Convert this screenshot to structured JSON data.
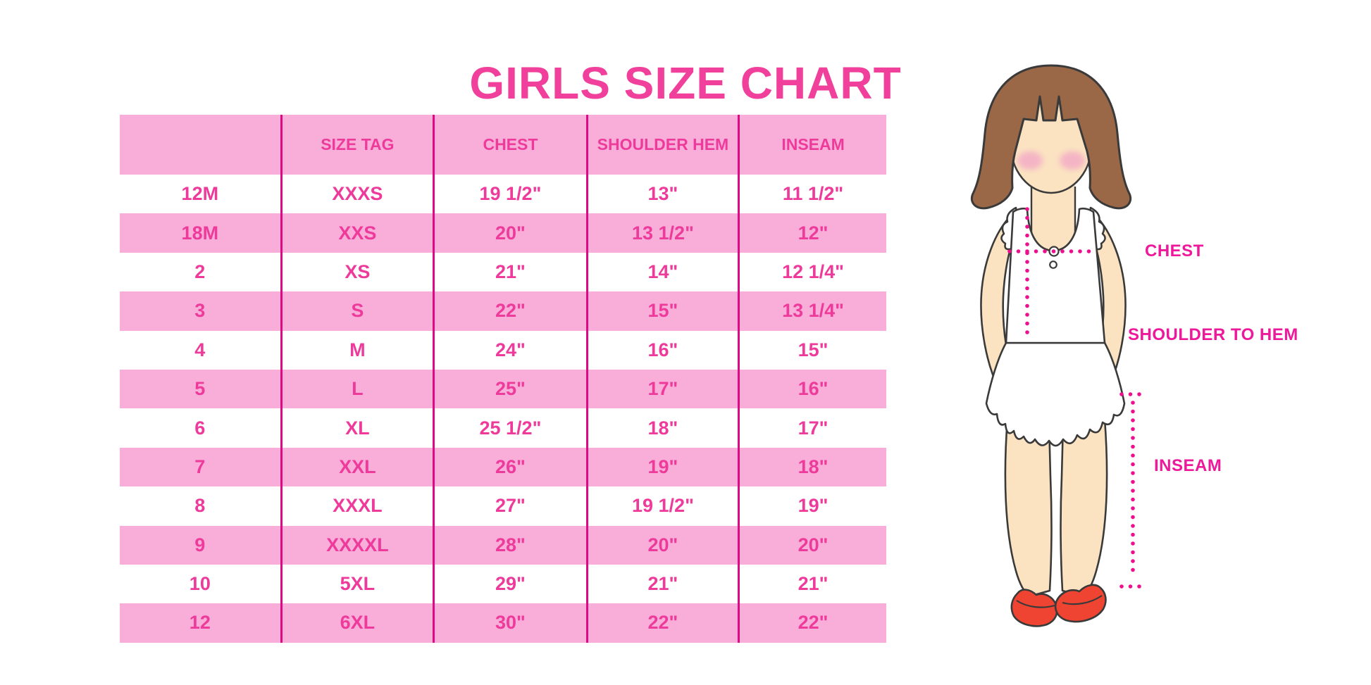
{
  "header": {
    "title": "GIRLS SIZE CHART"
  },
  "colors": {
    "row_pink": "#F9AEDA",
    "table_text_pink": "#EE3B9B",
    "column_divider_magenta": "#DE0984",
    "title_pink": "#F0409B",
    "figure_label_pink": "#EE189A",
    "dotted_line_pink": "#ED108E",
    "skin": "#FBE3C1",
    "hair_brown": "#9A6847",
    "blush_pink": "#F3A9C6",
    "shoe_red": "#EF4431"
  },
  "chart_data": {
    "type": "table",
    "title": "GIRLS SIZE CHART",
    "columns": [
      "",
      "SIZE TAG",
      "CHEST",
      "SHOULDER HEM",
      "INSEAM"
    ],
    "rows": [
      [
        "12M",
        "XXXS",
        "19 1/2\"",
        "13\"",
        "11 1/2\""
      ],
      [
        "18M",
        "XXS",
        "20\"",
        "13 1/2\"",
        "12\""
      ],
      [
        "2",
        "XS",
        "21\"",
        "14\"",
        "12 1/4\""
      ],
      [
        "3",
        "S",
        "22\"",
        "15\"",
        "13 1/4\""
      ],
      [
        "4",
        "M",
        "24\"",
        "16\"",
        "15\""
      ],
      [
        "5",
        "L",
        "25\"",
        "17\"",
        "16\""
      ],
      [
        "6",
        "XL",
        "25 1/2\"",
        "18\"",
        "17\""
      ],
      [
        "7",
        "XXL",
        "26\"",
        "19\"",
        "18\""
      ],
      [
        "8",
        "XXXL",
        "27\"",
        "19 1/2\"",
        "19\""
      ],
      [
        "9",
        "XXXXL",
        "28\"",
        "20\"",
        "20\""
      ],
      [
        "10",
        "5XL",
        "29\"",
        "21\"",
        "21\""
      ],
      [
        "12",
        "6XL",
        "30\"",
        "22\"",
        "22\""
      ]
    ],
    "layout": {
      "row_striping": "header pink, data rows alternate white/pink starting white",
      "gridlines": "vertical magenta dividers between columns only"
    }
  },
  "figure": {
    "description": "cartoon girl with brown bob hair, white ruffled top and skirt, red shoes",
    "labels": {
      "chest": "CHEST",
      "shoulder_to_hem": "SHOULDER TO HEM",
      "inseam": "INSEAM"
    }
  }
}
